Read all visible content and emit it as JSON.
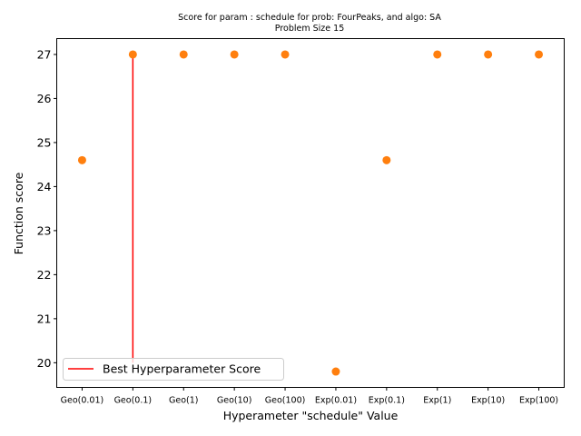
{
  "chart_data": {
    "type": "scatter",
    "title_line1": "Score for param : schedule for prob: FourPeaks, and algo: SA",
    "title_line2": "Problem Size 15",
    "xlabel": "Hyperameter \"schedule\" Value",
    "ylabel": "Function score",
    "categories": [
      "Geo(0.01)",
      "Geo(0.1)",
      "Geo(1)",
      "Geo(10)",
      "Geo(100)",
      "Exp(0.01)",
      "Exp(0.1)",
      "Exp(1)",
      "Exp(10)",
      "Exp(100)"
    ],
    "values": [
      24.6,
      27,
      27,
      27,
      27,
      19.8,
      24.6,
      27,
      27,
      27
    ],
    "yticks": [
      20,
      21,
      22,
      23,
      24,
      25,
      26,
      27
    ],
    "ylim": [
      19.44,
      27.36
    ],
    "best_line": {
      "category_index": 1,
      "y_from": 20,
      "y_to": 27
    },
    "legend": {
      "label": "Best Hyperparameter Score",
      "placement": "lower-left"
    },
    "grid": false,
    "colors": {
      "points": "#ff7f0e",
      "best_line": "#ff0000",
      "axis": "#000000"
    }
  }
}
